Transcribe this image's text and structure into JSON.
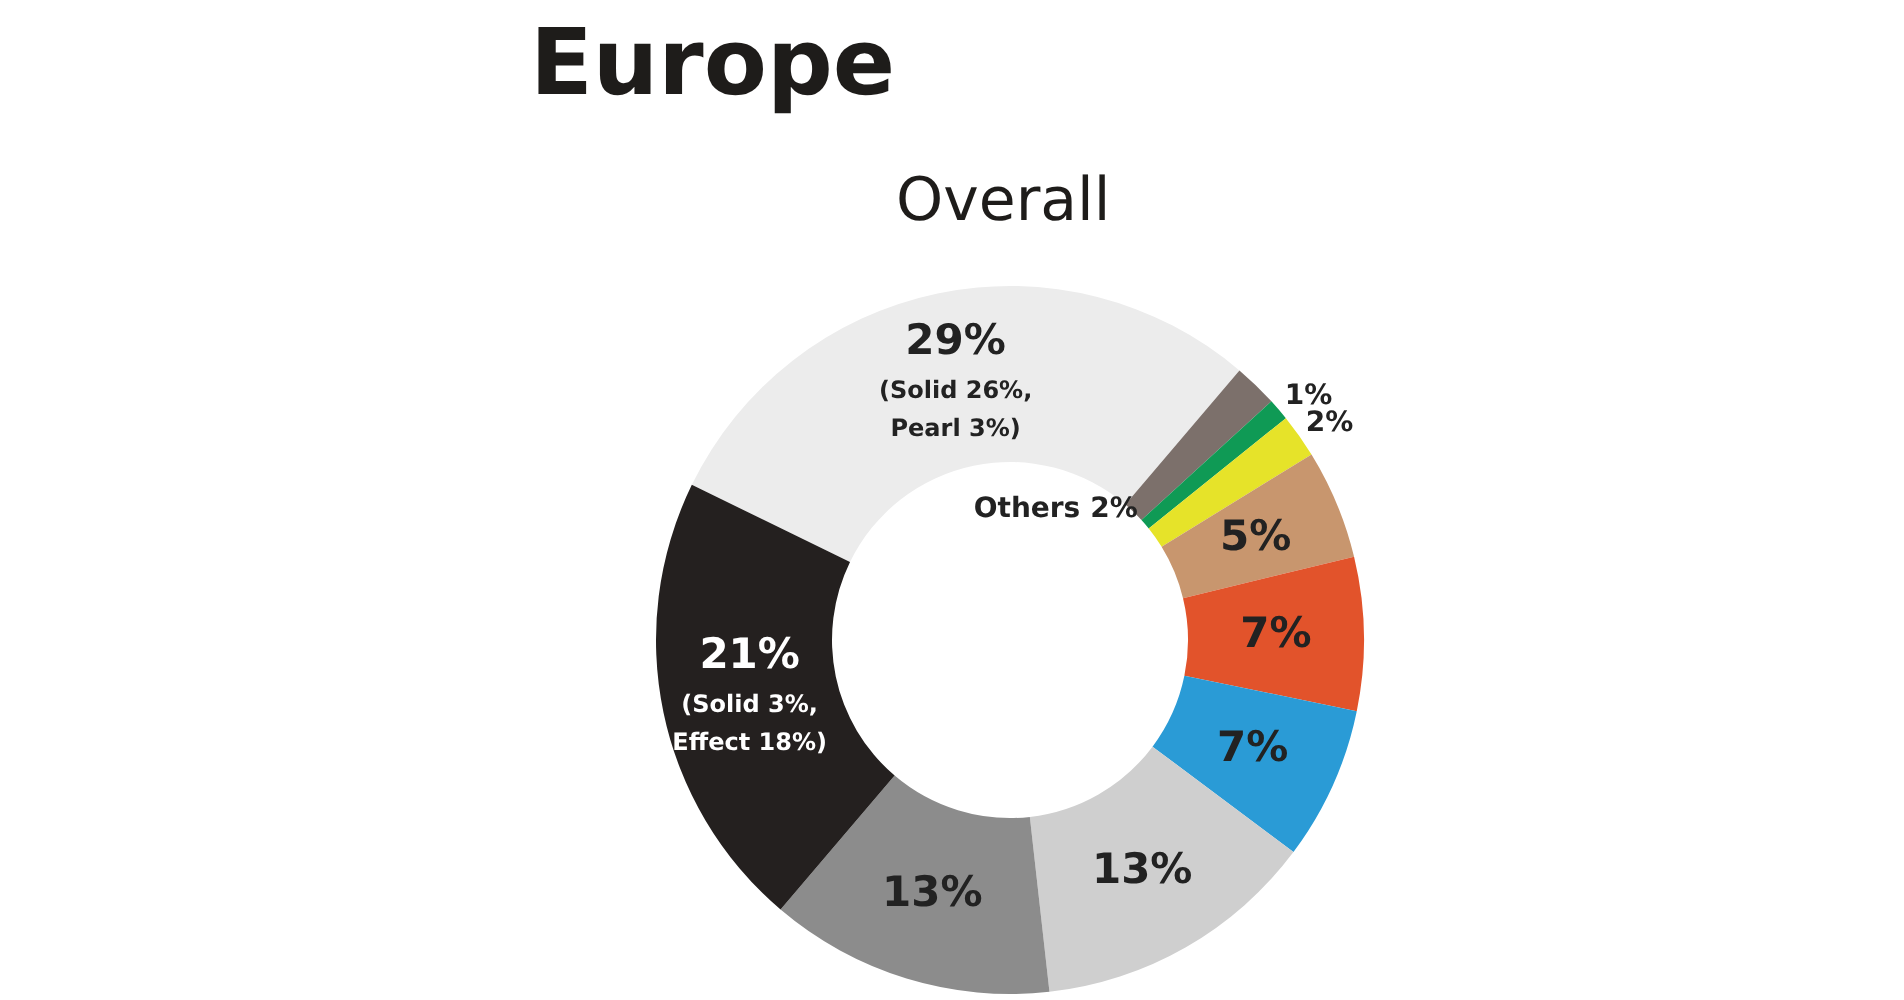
{
  "chart_data": {
    "type": "donut",
    "title": "Europe",
    "subtitle": "Overall",
    "categories": [
      null,
      "Others",
      null,
      null,
      null,
      null,
      null,
      null,
      null,
      null
    ],
    "values": [
      29,
      2,
      1,
      2,
      5,
      7,
      7,
      13,
      13,
      21
    ],
    "colors": [
      "#ececec",
      "#7c706b",
      "#0f9a55",
      "#e6e329",
      "#c8966e",
      "#e2532b",
      "#2a9bd6",
      "#cfcfcf",
      "#8c8c8c",
      "#24201f"
    ],
    "value_labels": [
      "29% (Solid 26%, Pearl 3%)",
      "2%",
      "1%",
      "2%",
      "5%",
      "7%",
      "7%",
      "13%",
      "13%",
      "21% (Solid 3%, Effect 18%)"
    ]
  }
}
